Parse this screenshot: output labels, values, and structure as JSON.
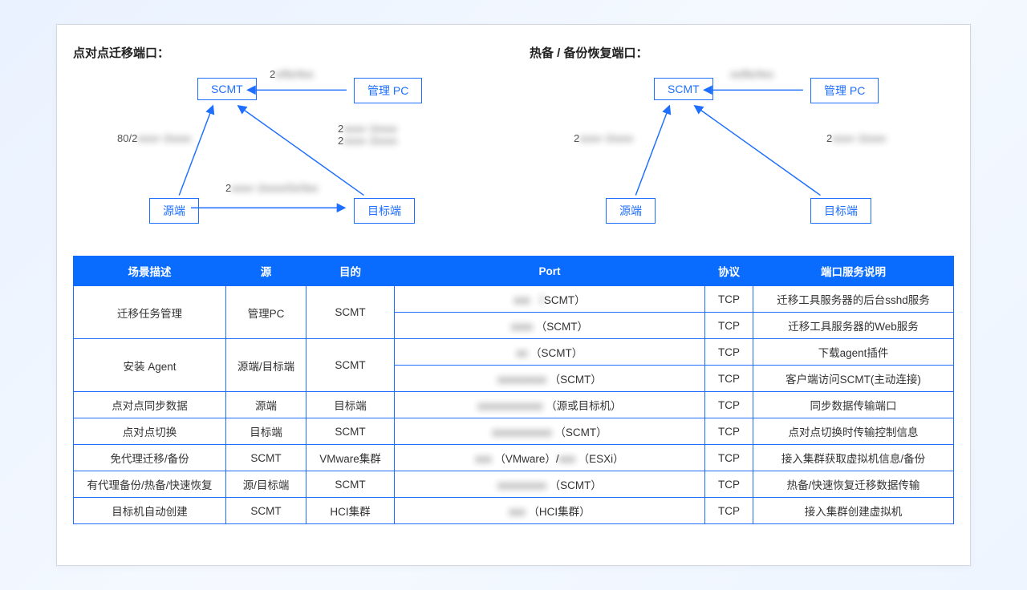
{
  "colors": {
    "accent": "#1e6fff",
    "header_bg": "#0a6cff",
    "panel_border": "#d0d7e2",
    "bg_gradient_from": "#eaf2ff",
    "bg_gradient_to": "#eef5ff",
    "text": "#333333"
  },
  "diagram_left": {
    "title": "点对点迁移端口：",
    "nodes": {
      "scmt": "SCMT",
      "pc": "管理 PC",
      "source": "源端",
      "target": "目标端"
    },
    "edges": {
      "pc_scmt": {
        "label_prefix": "2",
        "label_blur": "x/8x/4xx"
      },
      "source_scmt": {
        "label_prefix": "80/2",
        "label_blur": "xxxx~2xxxx"
      },
      "target_scmt": {
        "label_line1_prefix": "2",
        "label_line1_blur": "xxxx~2xxxx",
        "label_line2_prefix": "2",
        "label_line2_blur": "xxxx~2xxxx"
      },
      "source_target": {
        "label_prefix": "2",
        "label_blur": "xxxx~2xxxx/2x/3xx"
      }
    }
  },
  "diagram_right": {
    "title": "热备 / 备份恢复端口：",
    "nodes": {
      "scmt": "SCMT",
      "pc": "管理 PC",
      "source": "源端",
      "target": "目标端"
    },
    "edges": {
      "pc_scmt": {
        "label_blur": "xx/8x/4xx"
      },
      "source_scmt": {
        "label_prefix": "2",
        "label_blur": "xxxx~2xxxx"
      },
      "target_scmt": {
        "label_prefix": "2",
        "label_blur": "xxxx~2xxxx"
      }
    }
  },
  "table": {
    "headers": [
      "场景描述",
      "源",
      "目的",
      "Port",
      "协议",
      "端口服务说明"
    ],
    "rows": [
      {
        "scene": "迁移任务管理",
        "scene_rowspan": 2,
        "src": "管理PC",
        "src_rowspan": 2,
        "dst": "SCMT",
        "dst_rowspan": 2,
        "port_visible": "SCMT）",
        "port_blur": "xxx （",
        "proto": "TCP",
        "desc": "迁移工具服务器的后台sshd服务"
      },
      {
        "port_visible": "（SCMT）",
        "port_blur": "xxxx ",
        "proto": "TCP",
        "desc": "迁移工具服务器的Web服务"
      },
      {
        "scene": "安装 Agent",
        "scene_rowspan": 2,
        "src": "源端/目标端",
        "src_rowspan": 2,
        "dst": "SCMT",
        "dst_rowspan": 2,
        "port_visible": "（SCMT）",
        "port_blur": "xx ",
        "proto": "TCP",
        "desc": "下载agent插件"
      },
      {
        "port_visible": "（SCMT）",
        "port_blur": "xxxxxxxxx ",
        "proto": "TCP",
        "desc": "客户端访问SCMT(主动连接)"
      },
      {
        "scene": "点对点同步数据",
        "src": "源端",
        "dst": "目标端",
        "port_visible": "（源或目标机）",
        "port_blur": "xxxxxxxxxxxx ",
        "proto": "TCP",
        "desc": "同步数据传输端口"
      },
      {
        "scene": "点对点切换",
        "src": "目标端",
        "dst": "SCMT",
        "port_visible": "（SCMT）",
        "port_blur": "xxxxxxxxxxx ",
        "proto": "TCP",
        "desc": "点对点切换时传输控制信息"
      },
      {
        "scene": "免代理迁移/备份",
        "src": "SCMT",
        "dst": "VMware集群",
        "port_visible_before": "（VMware）/",
        "port_blur_before": "xxx ",
        "port_visible_after": "（ESXi）",
        "port_blur_after": "xxx ",
        "proto": "TCP",
        "desc": "接入集群获取虚拟机信息/备份"
      },
      {
        "scene": "有代理备份/热备/快速恢复",
        "src": "源/目标端",
        "dst": "SCMT",
        "port_visible": "（SCMT）",
        "port_blur": "xxxxxxxxx ",
        "proto": "TCP",
        "desc": "热备/快速恢复迁移数据传输"
      },
      {
        "scene": "目标机自动创建",
        "src": "SCMT",
        "dst": "HCI集群",
        "port_visible": "（HCI集群）",
        "port_blur": "xxx ",
        "proto": "TCP",
        "desc": "接入集群创建虚拟机"
      }
    ]
  }
}
